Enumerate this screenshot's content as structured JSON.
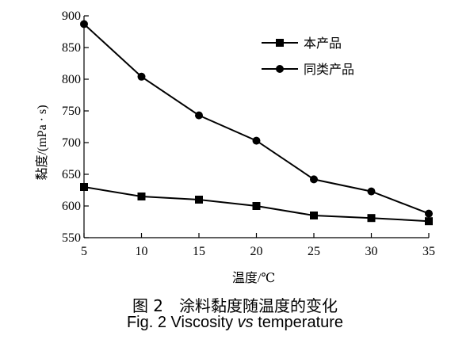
{
  "chart_data": {
    "type": "line",
    "xlabel": "温度/℃",
    "ylabel": "黏度/(mPa · s)",
    "x": [
      5,
      10,
      15,
      20,
      25,
      30,
      35
    ],
    "xlim": [
      5,
      35
    ],
    "ylim": [
      550,
      900
    ],
    "xticks": [
      "5",
      "10",
      "15",
      "20",
      "25",
      "30",
      "35"
    ],
    "yticks": [
      "550",
      "600",
      "650",
      "700",
      "750",
      "800",
      "850",
      "900"
    ],
    "grid": false,
    "legend_position": "top-right",
    "series": [
      {
        "name": "本产品",
        "marker": "square",
        "values": [
          630,
          615,
          610,
          600,
          585,
          581,
          576
        ]
      },
      {
        "name": "同类产品",
        "marker": "circle",
        "values": [
          887,
          804,
          743,
          703,
          642,
          623,
          588
        ]
      }
    ]
  },
  "caption": {
    "cn": "图 2　涂料黏度随温度的变化",
    "en_prefix": "Fig. 2 Viscosity ",
    "en_italic": "vs",
    "en_suffix": " temperature"
  }
}
